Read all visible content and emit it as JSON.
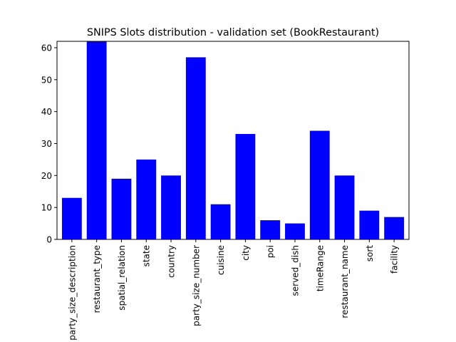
{
  "chart_data": {
    "type": "bar",
    "title": "SNIPS Slots distribution - validation set (BookRestaurant)",
    "xlabel": "",
    "ylabel": "",
    "categories": [
      "party_size_description",
      "restaurant_type",
      "spatial_relation",
      "state",
      "country",
      "party_size_number",
      "cuisine",
      "city",
      "poi",
      "served_dish",
      "timeRange",
      "restaurant_name",
      "sort",
      "facility"
    ],
    "values": [
      13,
      62,
      19,
      25,
      20,
      57,
      11,
      33,
      6,
      5,
      34,
      20,
      9,
      7
    ],
    "ylim": [
      0,
      62
    ],
    "yticks": [
      0,
      10,
      20,
      30,
      40,
      50,
      60
    ],
    "bar_color": "#0000ff",
    "grid": false,
    "legend": "none"
  }
}
